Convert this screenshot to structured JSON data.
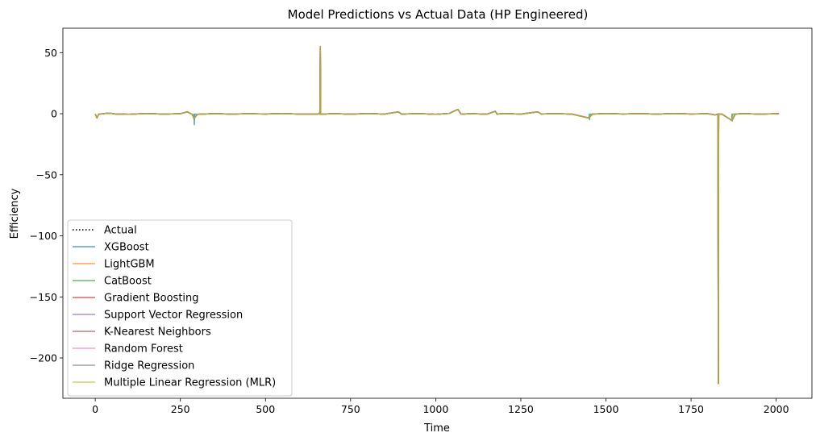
{
  "chart_data": {
    "type": "line",
    "title": "Model Predictions vs Actual Data (HP Engineered)",
    "xlabel": "Time",
    "ylabel": "Efficiency",
    "xlim": [
      -95,
      2105
    ],
    "ylim": [
      -233,
      70
    ],
    "xticks": [
      0,
      250,
      500,
      750,
      1000,
      1250,
      1500,
      1750,
      2000
    ],
    "yticks": [
      50,
      0,
      -50,
      -100,
      -150,
      -200
    ],
    "ytick_labels": [
      "50",
      "0",
      "−50",
      "−100",
      "−150",
      "−200"
    ],
    "grid": false,
    "legend_position": "lower-left",
    "baseline": [
      [
        0,
        -0.3
      ],
      [
        5,
        -3.5
      ],
      [
        10,
        -0.4
      ],
      [
        40,
        0.5
      ],
      [
        60,
        -0.2
      ],
      [
        100,
        -0.5
      ],
      [
        150,
        0.2
      ],
      [
        200,
        -0.3
      ],
      [
        250,
        0.0
      ],
      [
        270,
        1.5
      ],
      [
        285,
        -0.5
      ],
      [
        290,
        -4.0
      ],
      [
        300,
        -0.5
      ],
      [
        350,
        0.1
      ],
      [
        400,
        -0.3
      ],
      [
        450,
        0.0
      ],
      [
        500,
        -0.2
      ],
      [
        550,
        0.2
      ],
      [
        600,
        -0.3
      ],
      [
        655,
        -0.3
      ],
      [
        660,
        1.0
      ],
      [
        670,
        -0.3
      ],
      [
        700,
        0.1
      ],
      [
        750,
        -0.4
      ],
      [
        800,
        0.2
      ],
      [
        850,
        -0.3
      ],
      [
        890,
        1.5
      ],
      [
        900,
        -0.3
      ],
      [
        950,
        0.1
      ],
      [
        1000,
        -0.5
      ],
      [
        1040,
        0.3
      ],
      [
        1065,
        3.5
      ],
      [
        1075,
        -0.5
      ],
      [
        1100,
        0.1
      ],
      [
        1150,
        -0.4
      ],
      [
        1175,
        2.0
      ],
      [
        1180,
        -0.3
      ],
      [
        1200,
        0.2
      ],
      [
        1250,
        -0.3
      ],
      [
        1300,
        1.5
      ],
      [
        1310,
        -0.2
      ],
      [
        1350,
        0.1
      ],
      [
        1400,
        -0.3
      ],
      [
        1450,
        -3.5
      ],
      [
        1460,
        -0.3
      ],
      [
        1500,
        0.2
      ],
      [
        1550,
        -0.2
      ],
      [
        1600,
        0.1
      ],
      [
        1650,
        -0.3
      ],
      [
        1700,
        0.2
      ],
      [
        1750,
        -0.2
      ],
      [
        1800,
        0.0
      ],
      [
        1820,
        -1.0
      ],
      [
        1840,
        -0.2
      ],
      [
        1870,
        -5.5
      ],
      [
        1880,
        -0.3
      ],
      [
        1900,
        0.1
      ],
      [
        1950,
        -0.3
      ],
      [
        2008,
        0.0
      ]
    ],
    "spikes": [
      {
        "x": 661,
        "y": 55
      },
      {
        "x": 1830,
        "y": -221
      }
    ],
    "series": [
      {
        "name": "Actual",
        "color": "#000000",
        "style": "dotted",
        "opacity": 1.0,
        "extra_spikes": []
      },
      {
        "name": "XGBoost",
        "color": "#1f77b4",
        "style": "solid",
        "opacity": 0.7,
        "extra_spikes": [
          {
            "x": 291,
            "y": -9
          }
        ]
      },
      {
        "name": "LightGBM",
        "color": "#ff7f0e",
        "style": "solid",
        "opacity": 0.7,
        "extra_spikes": []
      },
      {
        "name": "CatBoost",
        "color": "#2ca02c",
        "style": "solid",
        "opacity": 0.7,
        "extra_spikes": [
          {
            "x": 1452,
            "y": -5
          },
          {
            "x": 1871,
            "y": -6
          }
        ]
      },
      {
        "name": "Gradient Boosting",
        "color": "#d62728",
        "style": "solid",
        "opacity": 0.7,
        "extra_spikes": []
      },
      {
        "name": "Support Vector Regression",
        "color": "#9467bd",
        "style": "solid",
        "opacity": 0.7,
        "extra_spikes": []
      },
      {
        "name": "K-Nearest Neighbors",
        "color": "#8c564b",
        "style": "solid",
        "opacity": 0.7,
        "extra_spikes": []
      },
      {
        "name": "Random Forest",
        "color": "#e377c2",
        "style": "solid",
        "opacity": 0.7,
        "extra_spikes": []
      },
      {
        "name": "Ridge Regression",
        "color": "#7f7f7f",
        "style": "solid",
        "opacity": 0.7,
        "extra_spikes": []
      },
      {
        "name": "Multiple Linear Regression (MLR)",
        "color": "#bcbd22",
        "style": "solid",
        "opacity": 0.7,
        "extra_spikes": []
      }
    ]
  }
}
